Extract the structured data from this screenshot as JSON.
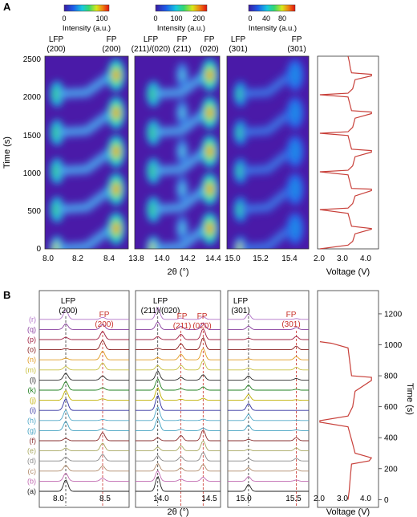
{
  "colorbar_label": "Intensity (a.u.)",
  "panelA": {
    "letter": "A",
    "ylabel": "Time (s)",
    "xlabel": "2θ (°)",
    "voltage_label": "Voltage (V)",
    "time_ticks": [
      "0",
      "500",
      "1000",
      "1500",
      "2000",
      "2500"
    ],
    "voltage_ticks": [
      "2.0",
      "3.0",
      "4.0"
    ],
    "subplots": [
      {
        "cbar_ticks": [
          "0",
          "100"
        ],
        "peak_labels": [
          [
            "LFP",
            "(200)"
          ],
          [
            "FP",
            "(200)"
          ]
        ],
        "x_ticks": [
          "8.0",
          "8.2",
          "8.4"
        ]
      },
      {
        "cbar_ticks": [
          "0",
          "100",
          "200"
        ],
        "peak_labels": [
          [
            "LFP",
            "(211)/(020)"
          ],
          [
            "FP",
            "(211)"
          ],
          [
            "FP",
            "(020)"
          ]
        ],
        "x_ticks": [
          "13.8",
          "14.0",
          "14.2",
          "14.4"
        ]
      },
      {
        "cbar_ticks": [
          "0",
          "40",
          "80"
        ],
        "peak_labels": [
          [
            "LFP",
            "(301)"
          ],
          [
            "FP",
            "(301)"
          ]
        ],
        "x_ticks": [
          "15.0",
          "15.2",
          "15.4"
        ]
      }
    ]
  },
  "panelB": {
    "letter": "B",
    "xlabel": "2θ (°)",
    "voltage_label": "Voltage (V)",
    "time_label": "Time (s)",
    "time_ticks": [
      "0",
      "200",
      "400",
      "600",
      "800",
      "1000",
      "1200"
    ],
    "voltage_ticks": [
      "2.0",
      "3.0",
      "4.0"
    ],
    "row_labels": [
      "(a)",
      "(b)",
      "(c)",
      "(d)",
      "(e)",
      "(f)",
      "(g)",
      "(h)",
      "(i)",
      "(j)",
      "(k)",
      "(l)",
      "(m)",
      "(n)",
      "(o)",
      "(p)",
      "(q)",
      "(r)"
    ],
    "row_colors": [
      "#222222",
      "#c06ab0",
      "#b08a6a",
      "#8a8a8a",
      "#a8a860",
      "#8a3030",
      "#40a0c0",
      "#50a8c8",
      "#3030a0",
      "#c0b000",
      "#208020",
      "#2a2a2a",
      "#c8c040",
      "#e09a20",
      "#8a2020",
      "#a02040",
      "#8a40a0",
      "#b070c8"
    ],
    "subplots": [
      {
        "peak_labels": [
          [
            "LFP",
            "(200)"
          ],
          [
            "FP",
            "(200)"
          ]
        ],
        "x_ticks": [
          "8.0",
          "8.5"
        ]
      },
      {
        "peak_labels": [
          [
            "LFP",
            "(211)/(020)"
          ],
          [
            "FP",
            "(211)"
          ],
          [
            "FP",
            "(020)"
          ]
        ],
        "x_ticks": [
          "14.0",
          "14.5"
        ]
      },
      {
        "peak_labels": [
          [
            "LFP",
            "(301)"
          ],
          [
            "FP",
            "(301)"
          ]
        ],
        "x_ticks": [
          "15.0",
          "15.5"
        ]
      }
    ]
  },
  "chart_data": [
    {
      "type": "heatmap",
      "panel": "A",
      "ylabel": "Time (s)",
      "xlabel": "2θ (°)",
      "ylim": [
        0,
        2550
      ],
      "colorscale": [
        "#3a1aa0",
        "#1d5ce8",
        "#17c8e0",
        "#34d870",
        "#d8e81a",
        "#f08010",
        "#e01010"
      ],
      "subplots": [
        {
          "xlim": [
            8.0,
            8.55
          ],
          "peaks": [
            {
              "name": "LFP (200)",
              "x": 8.08
            },
            {
              "name": "FP (200)",
              "x": 8.47
            }
          ]
        },
        {
          "xlim": [
            13.8,
            14.48
          ],
          "peaks": [
            {
              "name": "LFP (211)/(020)",
              "x": 13.95
            },
            {
              "name": "FP (211)",
              "x": 14.18
            },
            {
              "name": "FP (020)",
              "x": 14.4
            }
          ]
        },
        {
          "xlim": [
            14.95,
            15.55
          ],
          "peaks": [
            {
              "name": "LFP (301)",
              "x": 15.05
            },
            {
              "name": "FP (301)",
              "x": 15.45
            }
          ]
        }
      ],
      "fp_max_times": [
        270,
        790,
        1290,
        1800,
        2300
      ],
      "lfp_max_times": [
        0,
        520,
        1030,
        1540,
        2050
      ]
    },
    {
      "type": "line",
      "panel": "A-voltage",
      "xlabel": "Voltage (V)",
      "xlim": [
        2.0,
        4.6
      ],
      "ylim": [
        0,
        2550
      ],
      "time": [
        0,
        50,
        100,
        200,
        260,
        270,
        300,
        360,
        470,
        520,
        540,
        600,
        700,
        770,
        790,
        800,
        860,
        980,
        1020,
        1040,
        1100,
        1220,
        1280,
        1300,
        1320,
        1380,
        1500,
        1530,
        1550,
        1610,
        1730,
        1790,
        1810,
        1830,
        1890,
        2010,
        2040,
        2060,
        2120,
        2240,
        2290,
        2310,
        2330,
        2390,
        2480,
        2550
      ],
      "voltage": [
        2.1,
        3.3,
        3.5,
        3.6,
        4.3,
        4.3,
        3.45,
        3.4,
        3.3,
        2.1,
        3.3,
        3.5,
        3.6,
        4.3,
        4.3,
        3.45,
        3.4,
        3.3,
        2.1,
        3.3,
        3.5,
        3.6,
        4.3,
        4.3,
        3.45,
        3.4,
        3.3,
        2.1,
        3.3,
        3.5,
        3.6,
        4.3,
        4.3,
        3.45,
        3.4,
        3.3,
        2.1,
        3.3,
        3.5,
        3.6,
        4.3,
        4.3,
        3.45,
        3.4,
        3.35,
        3.3
      ]
    },
    {
      "type": "line",
      "panel": "B",
      "xlabel": "2θ (°)",
      "series_order": [
        "(a)",
        "(b)",
        "(c)",
        "(d)",
        "(e)",
        "(f)",
        "(g)",
        "(h)",
        "(i)",
        "(j)",
        "(k)",
        "(l)",
        "(m)",
        "(n)",
        "(o)",
        "(p)",
        "(q)",
        "(r)"
      ],
      "lfp_fraction": [
        1.0,
        0.7,
        0.5,
        0.35,
        0.25,
        0.2,
        0.8,
        0.9,
        1.0,
        0.85,
        0.75,
        0.6,
        0.3,
        0.15,
        0.1,
        0.2,
        0.5,
        0.8
      ],
      "subplots": [
        {
          "xlim": [
            7.8,
            8.75
          ],
          "peaks": [
            {
              "name": "LFP (200)",
              "x": 8.08
            },
            {
              "name": "FP (200)",
              "x": 8.47
            }
          ]
        },
        {
          "xlim": [
            13.7,
            14.58
          ],
          "peaks": [
            {
              "name": "LFP (211)/(020)",
              "x": 13.93
            },
            {
              "name": "FP (211)",
              "x": 14.17
            },
            {
              "name": "FP (020)",
              "x": 14.4
            }
          ]
        },
        {
          "xlim": [
            14.82,
            15.6
          ],
          "peaks": [
            {
              "name": "LFP (301)",
              "x": 15.02
            },
            {
              "name": "FP (301)",
              "x": 15.48
            }
          ]
        }
      ]
    },
    {
      "type": "line",
      "panel": "B-voltage",
      "xlabel": "Voltage (V)",
      "ylabel": "Time (s)",
      "xlim": [
        2.0,
        4.6
      ],
      "ylim": [
        -50,
        1350
      ],
      "time": [
        0,
        60,
        150,
        230,
        250,
        270,
        300,
        360,
        470,
        500,
        510,
        540,
        600,
        700,
        770,
        790,
        800,
        860,
        980,
        1010,
        1020
      ],
      "voltage": [
        3.3,
        3.35,
        3.4,
        3.45,
        4.2,
        4.3,
        3.6,
        3.5,
        3.3,
        2.1,
        2.1,
        3.3,
        3.5,
        3.6,
        4.3,
        4.3,
        3.45,
        3.4,
        3.3,
        2.6,
        2.1
      ]
    }
  ]
}
